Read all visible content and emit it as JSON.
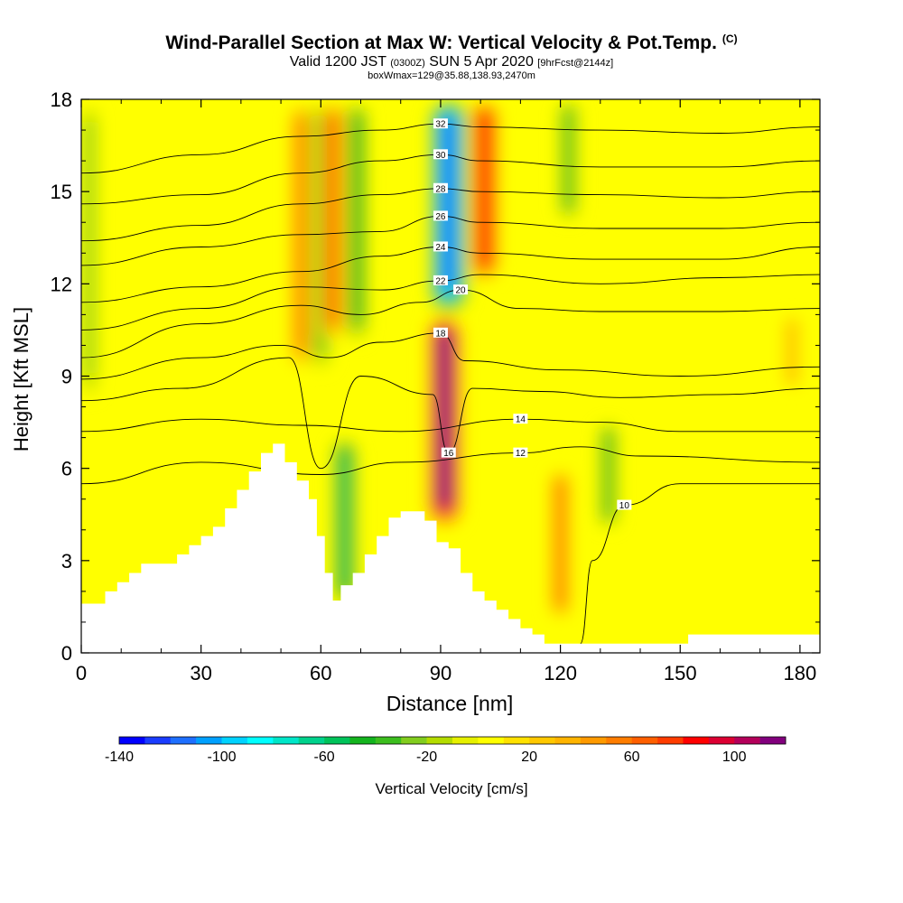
{
  "chart_data": {
    "type": "heatmap",
    "title": "Wind-Parallel Section at Max W: Vertical Velocity & Pot.Temp.",
    "title_mark": "(C)",
    "subtitle_main": "Valid 1200 JST",
    "subtitle_utc": "(0300Z)",
    "subtitle_date": "SUN 5 Apr 2020",
    "subtitle_fcst": "[9hrFcst@2144z]",
    "subtitle2": "boxWmax=129@35.88,138.93,2470m",
    "xlabel": "Distance [nm]",
    "ylabel": "Height [Kft MSL]",
    "xlim": [
      0,
      185
    ],
    "ylim": [
      0,
      18
    ],
    "x_ticks": [
      "0",
      "30",
      "60",
      "90",
      "120",
      "150",
      "180"
    ],
    "y_ticks": [
      "0",
      "3",
      "6",
      "9",
      "12",
      "15",
      "18"
    ],
    "colorbar": {
      "label": "Vertical Velocity [cm/s]",
      "range": [
        -140,
        120
      ],
      "ticks": [
        "-140",
        "-100",
        "-60",
        "-20",
        "20",
        "60",
        "100"
      ],
      "colors": [
        "#0000ff",
        "#1a3cff",
        "#1e6fff",
        "#00a0ff",
        "#00d2ff",
        "#00ffff",
        "#00e6c8",
        "#00d28c",
        "#00c35a",
        "#14b41e",
        "#3cbe1e",
        "#82cd1e",
        "#b4dc00",
        "#e6f000",
        "#ffff00",
        "#ffe100",
        "#ffc800",
        "#ffb400",
        "#ff9a00",
        "#ff7d00",
        "#ff5f00",
        "#ff3c00",
        "#ff0000",
        "#dc0032",
        "#b4005a",
        "#82007d"
      ]
    },
    "velocity_features": [
      {
        "x": 2,
        "z_range": [
          8,
          18
        ],
        "w": -25
      },
      {
        "x": 55,
        "z_range": [
          9,
          18
        ],
        "w": 45
      },
      {
        "x": 60,
        "z_range": [
          9,
          18
        ],
        "w": -40
      },
      {
        "x": 63,
        "z_range": [
          10,
          18
        ],
        "w": 55
      },
      {
        "x": 66,
        "z_range": [
          1.5,
          7
        ],
        "w": -60
      },
      {
        "x": 69,
        "z_range": [
          10,
          18
        ],
        "w": -45
      },
      {
        "x": 91,
        "z_range": [
          4,
          11
        ],
        "w": 110
      },
      {
        "x": 92,
        "z_range": [
          11,
          18
        ],
        "w": -120
      },
      {
        "x": 101,
        "z_range": [
          12,
          18
        ],
        "w": 80
      },
      {
        "x": 120,
        "z_range": [
          1,
          6
        ],
        "w": 45
      },
      {
        "x": 132,
        "z_range": [
          4,
          7.5
        ],
        "w": -40
      },
      {
        "x": 122,
        "z_range": [
          14,
          18
        ],
        "w": -40
      },
      {
        "x": 178,
        "z_range": [
          8.5,
          11
        ],
        "w": 30
      }
    ],
    "terrain": {
      "distance_nm": [
        0,
        3,
        6,
        9,
        12,
        15,
        18,
        24,
        27,
        30,
        33,
        36,
        39,
        42,
        45,
        48,
        51,
        54,
        57,
        59,
        61,
        63,
        65,
        68,
        71,
        74,
        77,
        80,
        83,
        86,
        89,
        92,
        95,
        98,
        101,
        104,
        107,
        110,
        113,
        116,
        119,
        122,
        152,
        185
      ],
      "height_kft": [
        1.6,
        1.6,
        2.0,
        2.3,
        2.6,
        2.9,
        2.9,
        3.2,
        3.5,
        3.8,
        4.1,
        4.7,
        5.3,
        5.9,
        6.5,
        6.8,
        6.2,
        5.6,
        5.0,
        3.8,
        2.6,
        1.7,
        2.2,
        2.6,
        3.2,
        3.8,
        4.4,
        4.6,
        4.6,
        4.3,
        3.6,
        3.4,
        2.6,
        2.0,
        1.7,
        1.4,
        1.1,
        0.8,
        0.6,
        0.3,
        0.3,
        0.3,
        0.6,
        0.6
      ]
    },
    "theta_contours": [
      {
        "label": "10",
        "points": [
          [
            125,
            0.3
          ],
          [
            128,
            3
          ],
          [
            136,
            4.8
          ],
          [
            150,
            5.5
          ],
          [
            185,
            5.5
          ]
        ]
      },
      {
        "label": "12",
        "points": [
          [
            0,
            5.5
          ],
          [
            30,
            6.2
          ],
          [
            60,
            5.8
          ],
          [
            80,
            6.2
          ],
          [
            110,
            6.5
          ],
          [
            125,
            6.7
          ],
          [
            140,
            6.4
          ],
          [
            185,
            6.2
          ]
        ]
      },
      {
        "label": "14",
        "points": [
          [
            0,
            7.2
          ],
          [
            30,
            7.6
          ],
          [
            55,
            7.4
          ],
          [
            80,
            7.2
          ],
          [
            110,
            7.6
          ],
          [
            130,
            7.5
          ],
          [
            150,
            7.2
          ],
          [
            185,
            7.2
          ]
        ]
      },
      {
        "label": "16",
        "points": [
          [
            0,
            8.2
          ],
          [
            25,
            8.6
          ],
          [
            52,
            9.6
          ],
          [
            60,
            6.0
          ],
          [
            70,
            9.0
          ],
          [
            88,
            8.4
          ],
          [
            92,
            6.5
          ],
          [
            98,
            8.6
          ],
          [
            115,
            8.5
          ],
          [
            135,
            8.3
          ],
          [
            160,
            8.4
          ],
          [
            185,
            8.6
          ]
        ]
      },
      {
        "label": "18",
        "points": [
          [
            0,
            8.9
          ],
          [
            30,
            9.6
          ],
          [
            50,
            10.0
          ],
          [
            62,
            9.6
          ],
          [
            75,
            10.1
          ],
          [
            90,
            10.4
          ],
          [
            96,
            9.5
          ],
          [
            120,
            9.2
          ],
          [
            150,
            9.0
          ],
          [
            185,
            9.3
          ]
        ]
      },
      {
        "label": "20",
        "points": [
          [
            0,
            9.6
          ],
          [
            30,
            10.7
          ],
          [
            55,
            11.3
          ],
          [
            70,
            11.0
          ],
          [
            85,
            11.4
          ],
          [
            95,
            11.8
          ],
          [
            110,
            11.2
          ],
          [
            130,
            11.1
          ],
          [
            160,
            11.1
          ],
          [
            185,
            11.2
          ]
        ]
      },
      {
        "label": "22",
        "points": [
          [
            0,
            10.5
          ],
          [
            30,
            11.2
          ],
          [
            55,
            11.9
          ],
          [
            75,
            11.8
          ],
          [
            90,
            12.1
          ],
          [
            100,
            12.3
          ],
          [
            130,
            12.0
          ],
          [
            160,
            12.2
          ],
          [
            185,
            12.3
          ]
        ]
      },
      {
        "label": "24",
        "points": [
          [
            0,
            11.4
          ],
          [
            30,
            11.9
          ],
          [
            55,
            12.4
          ],
          [
            75,
            12.9
          ],
          [
            90,
            13.2
          ],
          [
            100,
            13.0
          ],
          [
            130,
            12.8
          ],
          [
            160,
            12.8
          ],
          [
            185,
            13.2
          ]
        ]
      },
      {
        "label": "26",
        "points": [
          [
            0,
            12.6
          ],
          [
            30,
            13.2
          ],
          [
            55,
            13.6
          ],
          [
            75,
            13.7
          ],
          [
            90,
            14.2
          ],
          [
            100,
            14.0
          ],
          [
            130,
            13.8
          ],
          [
            160,
            13.8
          ],
          [
            185,
            14.0
          ]
        ]
      },
      {
        "label": "28",
        "points": [
          [
            0,
            13.4
          ],
          [
            30,
            13.9
          ],
          [
            55,
            14.6
          ],
          [
            75,
            14.9
          ],
          [
            90,
            15.1
          ],
          [
            100,
            15.0
          ],
          [
            130,
            14.9
          ],
          [
            160,
            14.8
          ],
          [
            185,
            15.0
          ]
        ]
      },
      {
        "label": "30",
        "points": [
          [
            0,
            14.6
          ],
          [
            30,
            14.9
          ],
          [
            55,
            15.6
          ],
          [
            75,
            16.0
          ],
          [
            90,
            16.2
          ],
          [
            100,
            16.0
          ],
          [
            130,
            15.8
          ],
          [
            160,
            15.8
          ],
          [
            185,
            16.0
          ]
        ]
      },
      {
        "label": "32",
        "points": [
          [
            0,
            15.6
          ],
          [
            30,
            16.2
          ],
          [
            55,
            16.8
          ],
          [
            75,
            17.0
          ],
          [
            90,
            17.2
          ],
          [
            100,
            17.1
          ],
          [
            130,
            17.0
          ],
          [
            160,
            16.9
          ],
          [
            185,
            17.1
          ]
        ]
      }
    ]
  }
}
